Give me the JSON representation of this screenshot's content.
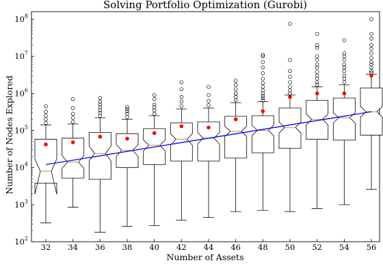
{
  "chart_data": {
    "type": "boxplot",
    "title": "Solving Portfolio Optimization (Gurobi)",
    "xlabel": "Number of Assets",
    "ylabel": "Number of Nodes Explored",
    "y_scale": "log",
    "ylim": [
      100,
      160000000
    ],
    "y_ticks": [
      {
        "base": "10",
        "exp": "2",
        "value": 100
      },
      {
        "base": "10",
        "exp": "3",
        "value": 1000
      },
      {
        "base": "10",
        "exp": "4",
        "value": 10000
      },
      {
        "base": "10",
        "exp": "5",
        "value": 100000
      },
      {
        "base": "10",
        "exp": "6",
        "value": 1000000
      },
      {
        "base": "10",
        "exp": "7",
        "value": 10000000
      },
      {
        "base": "10",
        "exp": "8",
        "value": 100000000
      }
    ],
    "categories": [
      "32",
      "34",
      "36",
      "38",
      "40",
      "42",
      "44",
      "46",
      "48",
      "50",
      "52",
      "54",
      "56"
    ],
    "boxes": [
      {
        "q1": 3800,
        "median": 8000,
        "q3": 58000,
        "whisker_low": 320,
        "whisker_high": 140000,
        "mean": 42000,
        "notch_low": 1900,
        "notch_high": 17000,
        "outliers": [
          160000,
          200000,
          250000,
          320000,
          450000
        ]
      },
      {
        "q1": 5200,
        "median": 14000,
        "q3": 62000,
        "whisker_low": 850,
        "whisker_high": 150000,
        "mean": 48000,
        "notch_low": 9500,
        "notch_high": 21000,
        "outliers": [
          170000,
          220000,
          280000,
          400000,
          700000
        ]
      },
      {
        "q1": 4800,
        "median": 24000,
        "q3": 88000,
        "whisker_low": 180,
        "whisker_high": 220000,
        "mean": 68000,
        "notch_low": 15000,
        "notch_high": 38000,
        "outliers": [
          250000,
          300000,
          350000,
          420000,
          500000,
          600000,
          750000
        ]
      },
      {
        "q1": 10000,
        "median": 29000,
        "q3": 82000,
        "whisker_low": 260,
        "whisker_high": 200000,
        "mean": 60000,
        "notch_low": 20000,
        "notch_high": 42000,
        "outliers": [
          230000,
          280000,
          330000,
          380000,
          430000
        ]
      },
      {
        "q1": 12000,
        "median": 40000,
        "q3": 112000,
        "whisker_low": 270,
        "whisker_high": 250000,
        "mean": 85000,
        "notch_low": 28000,
        "notch_high": 56000,
        "outliers": [
          280000,
          350000,
          420000,
          500000,
          700000,
          900000
        ]
      },
      {
        "q1": 15000,
        "median": 58000,
        "q3": 160000,
        "whisker_low": 380,
        "whisker_high": 380000,
        "mean": 130000,
        "notch_low": 40000,
        "notch_high": 82000,
        "outliers": [
          450000,
          600000,
          800000,
          1300000,
          2000000
        ]
      },
      {
        "q1": 15000,
        "median": 62000,
        "q3": 170000,
        "whisker_low": 450,
        "whisker_high": 400000,
        "mean": 120000,
        "notch_low": 43000,
        "notch_high": 88000,
        "outliers": [
          480000,
          620000,
          900000,
          1500000
        ]
      },
      {
        "q1": 18000,
        "median": 95000,
        "q3": 240000,
        "whisker_low": 650,
        "whisker_high": 560000,
        "mean": 200000,
        "notch_low": 68000,
        "notch_high": 130000,
        "outliers": [
          650000,
          800000,
          1000000,
          1300000,
          1700000,
          2200000
        ]
      },
      {
        "q1": 25000,
        "median": 100000,
        "q3": 250000,
        "whisker_low": 700,
        "whisker_high": 600000,
        "mean": 330000,
        "notch_low": 72000,
        "notch_high": 140000,
        "outliers": [
          650000,
          750000,
          850000,
          1000000,
          1200000,
          1500000,
          1900000,
          2500000,
          3500000,
          5000000,
          7000000,
          10000000,
          11000000
        ]
      },
      {
        "q1": 33000,
        "median": 120000,
        "q3": 400000,
        "whisker_low": 650,
        "whisker_high": 900000,
        "mean": 800000,
        "notch_low": 85000,
        "notch_high": 170000,
        "outliers": [
          1000000,
          1200000,
          1500000,
          2000000,
          2800000,
          4000000,
          8000000,
          75000000
        ]
      },
      {
        "q1": 58000,
        "median": 200000,
        "q3": 650000,
        "whisker_low": 780,
        "whisker_high": 1500000,
        "mean": 1000000,
        "notch_low": 140000,
        "notch_high": 280000,
        "outliers": [
          1700000,
          2000000,
          2500000,
          3000000,
          3800000,
          5000000,
          6000000,
          8000000,
          10000000,
          17000000,
          20000000,
          40000000
        ]
      },
      {
        "q1": 55000,
        "median": 220000,
        "q3": 750000,
        "whisker_low": 1000,
        "whisker_high": 1700000,
        "mean": 1000000,
        "notch_low": 160000,
        "notch_high": 300000,
        "outliers": [
          2000000,
          2500000,
          3000000,
          4000000,
          5000000,
          6000000,
          8000000,
          10000000,
          12000000,
          27000000
        ]
      },
      {
        "q1": 75000,
        "median": 320000,
        "q3": 1400000,
        "whisker_low": 2600,
        "whisker_high": 3300000,
        "mean": 3000000,
        "notch_low": 230000,
        "notch_high": 450000,
        "outliers": [
          3600000,
          4000000,
          5000000,
          6000000,
          7000000,
          9000000,
          12000000,
          16000000,
          20000000,
          30000000,
          40000000,
          100000000
        ]
      }
    ],
    "trend_line": {
      "x": [
        "32",
        "56"
      ],
      "y": [
        12000,
        320000
      ]
    },
    "colors": {
      "box": "#000000",
      "median": "#e07b39",
      "mean": "#ff0000",
      "trend": "#0000ee"
    }
  }
}
